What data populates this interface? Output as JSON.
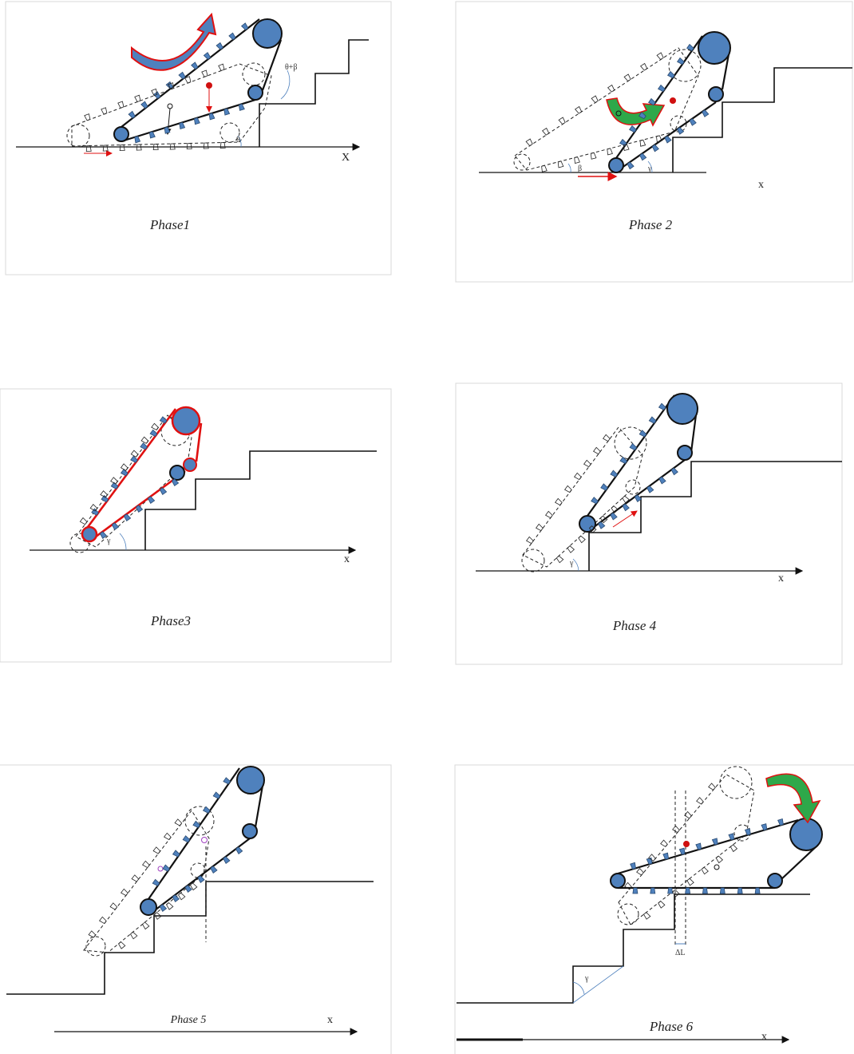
{
  "panels": [
    {
      "caption": "Phase1",
      "axis": "X",
      "angles": [
        "θ+β",
        "θ"
      ]
    },
    {
      "caption": "Phase 2",
      "axis": "x",
      "angles": [
        "β",
        "γ"
      ]
    },
    {
      "caption": "Phase3",
      "axis": "x",
      "angles": [
        "γ"
      ]
    },
    {
      "caption": "Phase 4",
      "axis": "x",
      "angles": [
        "γ"
      ]
    },
    {
      "caption": "Phase 5",
      "axis": "x",
      "angles": []
    },
    {
      "caption": "Phase 6",
      "axis": "x",
      "angles": [
        "γ",
        "ΔL"
      ]
    }
  ]
}
